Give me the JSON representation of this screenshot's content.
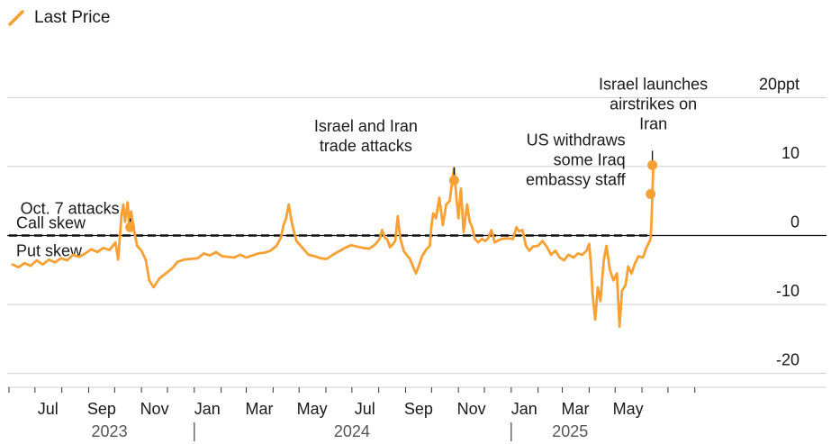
{
  "legend": {
    "label": "Last Price"
  },
  "colors": {
    "line": "#F7A034",
    "grid": "#cfcfcf",
    "zero": "#111111",
    "text": "#1a1a1a",
    "year": "#555555"
  },
  "chart_data": {
    "type": "line",
    "title": "",
    "xlabel": "",
    "ylabel": "",
    "ylim": [
      -22,
      22
    ],
    "y_ticks": [
      {
        "value": 20,
        "label": "20ppt"
      },
      {
        "value": 10,
        "label": "10"
      },
      {
        "value": 0,
        "label": "0"
      },
      {
        "value": -10,
        "label": "-10"
      },
      {
        "value": -20,
        "label": "-20"
      }
    ],
    "x_range": [
      "2023-06-01",
      "2025-08-20"
    ],
    "x_month_ticks": [
      "2023-06-01",
      "2023-07-01",
      "2023-08-01",
      "2023-09-01",
      "2023-10-01",
      "2023-11-01",
      "2023-12-01",
      "2024-01-01",
      "2024-02-01",
      "2024-03-01",
      "2024-04-01",
      "2024-05-01",
      "2024-06-01",
      "2024-07-01",
      "2024-08-01",
      "2024-09-01",
      "2024-10-01",
      "2024-11-01",
      "2024-12-01",
      "2025-01-01",
      "2025-02-01",
      "2025-03-01",
      "2025-04-01",
      "2025-05-01",
      "2025-06-01",
      "2025-07-01",
      "2025-08-01"
    ],
    "x_labels": [
      {
        "date": "2023-07-16",
        "label": "Jul"
      },
      {
        "date": "2023-09-16",
        "label": "Sep"
      },
      {
        "date": "2023-11-16",
        "label": "Nov"
      },
      {
        "date": "2024-01-16",
        "label": "Jan"
      },
      {
        "date": "2024-03-16",
        "label": "Mar"
      },
      {
        "date": "2024-05-16",
        "label": "May"
      },
      {
        "date": "2024-07-16",
        "label": "Jul"
      },
      {
        "date": "2024-09-16",
        "label": "Sep"
      },
      {
        "date": "2024-11-16",
        "label": "Nov"
      },
      {
        "date": "2025-01-16",
        "label": "Jan"
      },
      {
        "date": "2025-03-16",
        "label": "Mar"
      },
      {
        "date": "2025-05-16",
        "label": "May"
      }
    ],
    "years": [
      {
        "label": "2023",
        "center": "2023-09-25"
      },
      {
        "label": "2024",
        "center": "2024-07-01"
      },
      {
        "label": "2025",
        "center": "2025-03-10"
      }
    ],
    "year_separators": [
      "2024-01-01",
      "2025-01-01"
    ],
    "reference_line": {
      "value": 0
    },
    "dashed_line": {
      "value": 0,
      "from": "2023-06-01",
      "to": "2025-06-13"
    },
    "zone_labels": [
      {
        "text": "Call skew",
        "position": "above-zero"
      },
      {
        "text": "Put skew",
        "position": "below-zero"
      }
    ],
    "series": [
      {
        "name": "Last Price",
        "points": [
          [
            "2023-06-05",
            -4.2
          ],
          [
            "2023-06-12",
            -4.6
          ],
          [
            "2023-06-19",
            -4.0
          ],
          [
            "2023-06-26",
            -4.4
          ],
          [
            "2023-07-03",
            -3.6
          ],
          [
            "2023-07-10",
            -4.2
          ],
          [
            "2023-07-17",
            -3.5
          ],
          [
            "2023-07-24",
            -3.9
          ],
          [
            "2023-07-31",
            -3.3
          ],
          [
            "2023-08-07",
            -3.6
          ],
          [
            "2023-08-14",
            -2.8
          ],
          [
            "2023-08-21",
            -3.1
          ],
          [
            "2023-08-28",
            -2.6
          ],
          [
            "2023-09-04",
            -2.0
          ],
          [
            "2023-09-11",
            -2.4
          ],
          [
            "2023-09-18",
            -1.8
          ],
          [
            "2023-09-25",
            -2.1
          ],
          [
            "2023-10-02",
            -1.0
          ],
          [
            "2023-10-05",
            -3.5
          ],
          [
            "2023-10-09",
            3.0
          ],
          [
            "2023-10-11",
            4.5
          ],
          [
            "2023-10-13",
            2.0
          ],
          [
            "2023-10-16",
            4.8
          ],
          [
            "2023-10-18",
            1.2
          ],
          [
            "2023-10-20",
            3.5
          ],
          [
            "2023-10-23",
            1.0
          ],
          [
            "2023-10-27",
            -1.5
          ],
          [
            "2023-11-01",
            -2.2
          ],
          [
            "2023-11-06",
            -3.6
          ],
          [
            "2023-11-10",
            -6.5
          ],
          [
            "2023-11-15",
            -7.5
          ],
          [
            "2023-11-22",
            -6.2
          ],
          [
            "2023-11-29",
            -5.5
          ],
          [
            "2023-12-06",
            -4.8
          ],
          [
            "2023-12-13",
            -3.8
          ],
          [
            "2023-12-20",
            -3.5
          ],
          [
            "2023-12-28",
            -3.4
          ],
          [
            "2024-01-05",
            -3.3
          ],
          [
            "2024-01-12",
            -2.6
          ],
          [
            "2024-01-19",
            -2.9
          ],
          [
            "2024-01-26",
            -2.4
          ],
          [
            "2024-02-02",
            -3.0
          ],
          [
            "2024-02-09",
            -3.1
          ],
          [
            "2024-02-16",
            -3.2
          ],
          [
            "2024-02-23",
            -2.8
          ],
          [
            "2024-03-01",
            -3.2
          ],
          [
            "2024-03-08",
            -2.9
          ],
          [
            "2024-03-15",
            -2.6
          ],
          [
            "2024-03-22",
            -2.5
          ],
          [
            "2024-03-29",
            -2.2
          ],
          [
            "2024-04-05",
            -1.5
          ],
          [
            "2024-04-10",
            -0.3
          ],
          [
            "2024-04-13",
            1.5
          ],
          [
            "2024-04-16",
            2.5
          ],
          [
            "2024-04-19",
            4.5
          ],
          [
            "2024-04-23",
            1.6
          ],
          [
            "2024-04-28",
            -0.8
          ],
          [
            "2024-05-05",
            -1.8
          ],
          [
            "2024-05-12",
            -2.8
          ],
          [
            "2024-05-19",
            -3.0
          ],
          [
            "2024-05-26",
            -3.3
          ],
          [
            "2024-06-02",
            -3.4
          ],
          [
            "2024-06-09",
            -2.8
          ],
          [
            "2024-06-16",
            -2.3
          ],
          [
            "2024-06-23",
            -1.8
          ],
          [
            "2024-06-30",
            -1.4
          ],
          [
            "2024-07-07",
            -1.6
          ],
          [
            "2024-07-14",
            -1.8
          ],
          [
            "2024-07-21",
            -1.9
          ],
          [
            "2024-07-28",
            -1.3
          ],
          [
            "2024-08-02",
            -0.5
          ],
          [
            "2024-08-05",
            0.8
          ],
          [
            "2024-08-08",
            -0.3
          ],
          [
            "2024-08-11",
            -0.6
          ],
          [
            "2024-08-14",
            -1.7
          ],
          [
            "2024-08-17",
            -1.3
          ],
          [
            "2024-08-20",
            -0.8
          ],
          [
            "2024-08-23",
            2.8
          ],
          [
            "2024-08-26",
            -0.5
          ],
          [
            "2024-08-30",
            -2.3
          ],
          [
            "2024-09-06",
            -3.4
          ],
          [
            "2024-09-13",
            -5.5
          ],
          [
            "2024-09-16",
            -4.5
          ],
          [
            "2024-09-20",
            -3.0
          ],
          [
            "2024-09-25",
            -2.0
          ],
          [
            "2024-09-29",
            -1.5
          ],
          [
            "2024-10-01",
            1.5
          ],
          [
            "2024-10-03",
            3.2
          ],
          [
            "2024-10-06",
            2.5
          ],
          [
            "2024-10-10",
            5.5
          ],
          [
            "2024-10-14",
            1.5
          ],
          [
            "2024-10-18",
            4.5
          ],
          [
            "2024-10-22",
            5.0
          ],
          [
            "2024-10-25",
            8.0
          ],
          [
            "2024-10-27",
            9.8
          ],
          [
            "2024-10-29",
            6.5
          ],
          [
            "2024-11-01",
            2.5
          ],
          [
            "2024-11-04",
            6.8
          ],
          [
            "2024-11-07",
            0.5
          ],
          [
            "2024-11-11",
            4.5
          ],
          [
            "2024-11-14",
            2.0
          ],
          [
            "2024-11-17",
            1.2
          ],
          [
            "2024-11-20",
            -0.5
          ],
          [
            "2024-11-24",
            -1.0
          ],
          [
            "2024-11-28",
            -0.5
          ],
          [
            "2024-12-02",
            -0.8
          ],
          [
            "2024-12-06",
            -0.3
          ],
          [
            "2024-12-09",
            0.8
          ],
          [
            "2024-12-13",
            -1.0
          ],
          [
            "2024-12-17",
            -0.7
          ],
          [
            "2024-12-21",
            -0.5
          ],
          [
            "2024-12-28",
            -0.4
          ],
          [
            "2025-01-03",
            -0.5
          ],
          [
            "2025-01-07",
            1.2
          ],
          [
            "2025-01-10",
            0.6
          ],
          [
            "2025-01-14",
            0.8
          ],
          [
            "2025-01-18",
            -1.5
          ],
          [
            "2025-01-22",
            -2.2
          ],
          [
            "2025-01-26",
            -1.6
          ],
          [
            "2025-02-01",
            -1.5
          ],
          [
            "2025-02-06",
            -0.8
          ],
          [
            "2025-02-11",
            -1.6
          ],
          [
            "2025-02-16",
            -2.8
          ],
          [
            "2025-02-21",
            -2.2
          ],
          [
            "2025-02-26",
            -3.2
          ],
          [
            "2025-03-03",
            -3.6
          ],
          [
            "2025-03-08",
            -2.8
          ],
          [
            "2025-03-14",
            -3.2
          ],
          [
            "2025-03-19",
            -2.6
          ],
          [
            "2025-03-24",
            -2.8
          ],
          [
            "2025-03-29",
            -2.2
          ],
          [
            "2025-04-01",
            -1.2
          ],
          [
            "2025-04-03",
            -4.0
          ],
          [
            "2025-04-05",
            -8.5
          ],
          [
            "2025-04-08",
            -12.2
          ],
          [
            "2025-04-11",
            -7.5
          ],
          [
            "2025-04-14",
            -9.5
          ],
          [
            "2025-04-18",
            -3.5
          ],
          [
            "2025-04-21",
            -1.5
          ],
          [
            "2025-04-25",
            -5.0
          ],
          [
            "2025-04-29",
            -6.5
          ],
          [
            "2025-05-03",
            -5.5
          ],
          [
            "2025-05-06",
            -13.2
          ],
          [
            "2025-05-09",
            -8.0
          ],
          [
            "2025-05-13",
            -7.2
          ],
          [
            "2025-05-16",
            -4.5
          ],
          [
            "2025-05-20",
            -5.5
          ],
          [
            "2025-05-24",
            -4.0
          ],
          [
            "2025-05-28",
            -3.0
          ],
          [
            "2025-06-02",
            -3.2
          ],
          [
            "2025-06-06",
            -1.8
          ],
          [
            "2025-06-10",
            -0.8
          ],
          [
            "2025-06-11",
            -0.3
          ],
          [
            "2025-06-12",
            2.0
          ],
          [
            "2025-06-13",
            6.0
          ],
          [
            "2025-06-14",
            10.2
          ]
        ]
      }
    ],
    "annotations": [
      {
        "id": "oct7",
        "lines": [
          "Oct. 7 attacks"
        ],
        "date": "2023-10-19",
        "value": 1.2,
        "marker": true,
        "anchor": "end"
      },
      {
        "id": "iran_trade",
        "lines": [
          "Israel and Iran",
          "trade attacks"
        ],
        "date": "2024-10-27",
        "value": 8.0,
        "marker": true,
        "anchor": "middle"
      },
      {
        "id": "embassy",
        "lines": [
          "US withdraws",
          "some Iraq",
          "embassy staff"
        ],
        "date": "2025-06-11",
        "value": 6.0,
        "marker": true,
        "anchor": "end"
      },
      {
        "id": "airstrikes",
        "lines": [
          "Israel launches",
          "airstrikes on",
          "Iran"
        ],
        "date": "2025-06-13",
        "value": 10.2,
        "marker": true,
        "anchor": "middle"
      }
    ]
  }
}
